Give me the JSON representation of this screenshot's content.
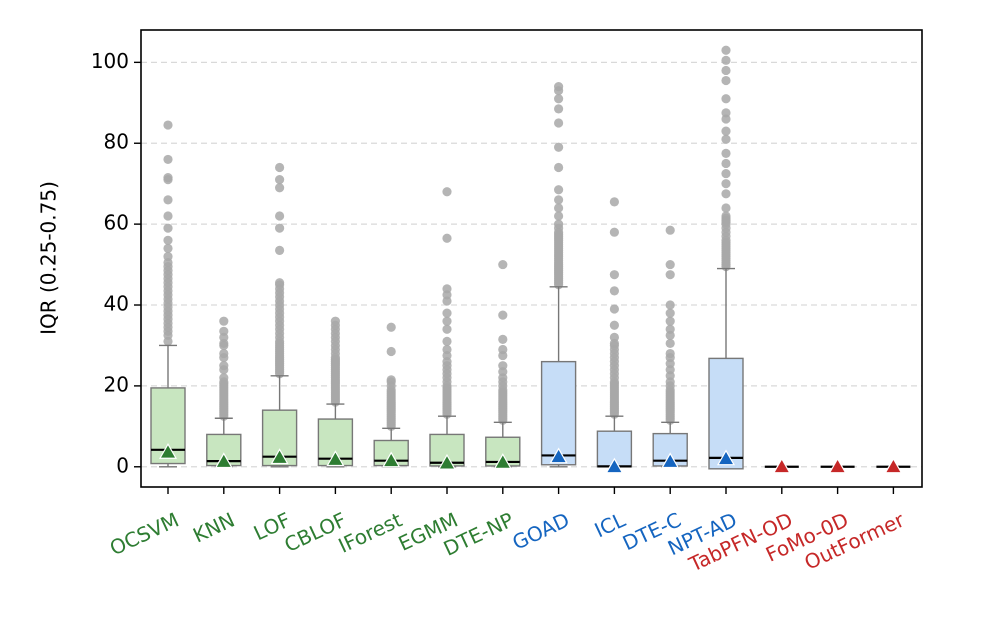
{
  "chart_data": {
    "type": "boxplot",
    "ylabel": "IQR (0.25-0.75)",
    "ylim": [
      -5,
      108
    ],
    "yticks": [
      0,
      20,
      40,
      60,
      80,
      100
    ],
    "grid": "horizontal-dashed",
    "colors": {
      "green": "#2e7d32",
      "blue": "#1565c0",
      "red": "#c62828",
      "green_fill": "#c8e6c0",
      "blue_fill": "#c6ddf7",
      "outlier": "#a8a8a8",
      "box_edge": "#777777"
    },
    "categories": [
      {
        "name": "OCSVM",
        "group": "green",
        "q1": 0.8,
        "median": 4.2,
        "q3": 19.5,
        "whislo": 0,
        "whishi": 30,
        "mean": 3.6,
        "outliers": [
          31,
          32.5,
          33.5,
          34.5,
          35.5,
          36.5,
          37.5,
          38.5,
          39.5,
          40.5,
          41.5,
          42.5,
          43.5,
          44.5,
          45.5,
          46.5,
          47.5,
          48.5,
          49.5,
          50.5,
          52,
          54,
          56,
          59,
          62,
          66,
          71,
          71.5,
          76,
          84.5
        ]
      },
      {
        "name": "KNN",
        "group": "green",
        "q1": 0.3,
        "median": 1.4,
        "q3": 8.0,
        "whislo": 0,
        "whishi": 12,
        "mean": 1.3,
        "outliers": [
          12.5,
          13,
          13.5,
          14,
          14.5,
          15,
          15.5,
          16,
          16.5,
          17,
          17.5,
          18,
          18.5,
          19,
          19.5,
          20,
          20.5,
          21,
          22,
          24,
          25,
          27,
          28,
          30,
          30.5,
          32,
          33.5,
          36
        ]
      },
      {
        "name": "LOF",
        "group": "green",
        "q1": 0.3,
        "median": 2.5,
        "q3": 14.0,
        "whislo": 0,
        "whishi": 22.5,
        "mean": 2.3,
        "outliers": [
          23,
          23.5,
          24,
          24.5,
          25,
          25.5,
          26,
          26.5,
          27,
          27.5,
          28,
          28.5,
          29,
          29.5,
          30,
          30.5,
          31,
          32,
          33,
          34,
          35,
          36,
          37,
          38,
          39,
          40,
          41,
          42,
          43,
          44,
          45,
          45.5,
          53.5,
          59,
          62,
          69,
          71,
          74
        ]
      },
      {
        "name": "CBLOF",
        "group": "green",
        "q1": 0.3,
        "median": 2.0,
        "q3": 11.8,
        "whislo": 0,
        "whishi": 15.5,
        "mean": 1.8,
        "outliers": [
          16,
          16.5,
          17,
          17.5,
          18,
          18.5,
          19,
          19.5,
          20,
          20.5,
          21,
          21.5,
          22,
          22.5,
          23,
          23.5,
          24,
          24.5,
          25,
          25.5,
          26,
          26.5,
          27,
          28,
          29,
          30,
          31,
          32,
          33,
          34,
          35,
          36
        ]
      },
      {
        "name": "IForest",
        "group": "green",
        "q1": 0.3,
        "median": 1.5,
        "q3": 6.5,
        "whislo": 0,
        "whishi": 9.5,
        "mean": 1.5,
        "outliers": [
          10,
          10.5,
          11,
          11.5,
          12,
          12.5,
          13,
          13.5,
          14,
          14.5,
          15,
          15.5,
          16,
          16.5,
          17,
          17.5,
          18,
          18.5,
          19,
          20,
          21,
          21.5,
          28.5,
          34.5
        ]
      },
      {
        "name": "EGMM",
        "group": "green",
        "q1": 0.2,
        "median": 1.0,
        "q3": 8.0,
        "whislo": 0,
        "whishi": 12.5,
        "mean": 0.9,
        "outliers": [
          13,
          13.5,
          14,
          14.5,
          15,
          15.5,
          16,
          16.5,
          17,
          17.5,
          18,
          18.5,
          19,
          19.5,
          20,
          21,
          22,
          23,
          24,
          25,
          26,
          27.5,
          29,
          31,
          34,
          36,
          38,
          41,
          42.5,
          44,
          56.5,
          68
        ]
      },
      {
        "name": "DTE-NP",
        "group": "green",
        "q1": 0.2,
        "median": 1.2,
        "q3": 7.3,
        "whislo": 0,
        "whishi": 11,
        "mean": 1.1,
        "outliers": [
          11.5,
          12,
          12.5,
          13,
          13.5,
          14,
          14.5,
          15,
          15.5,
          16,
          16.5,
          17,
          17.5,
          18,
          18.5,
          19,
          20,
          21,
          22,
          23.5,
          25,
          27.5,
          29,
          31.5,
          37.5,
          50
        ]
      },
      {
        "name": "GOAD",
        "group": "blue",
        "q1": 0.5,
        "median": 2.8,
        "q3": 26.0,
        "whislo": 0,
        "whishi": 44.5,
        "mean": 2.5,
        "outliers": [
          45,
          45.5,
          46,
          46.5,
          47,
          47.5,
          48,
          48.5,
          49,
          49.5,
          50,
          50.5,
          51,
          51.5,
          52,
          52.5,
          53,
          53.5,
          54,
          54.5,
          55,
          55.5,
          56,
          56.5,
          57,
          57.5,
          58,
          59,
          60,
          62,
          64,
          66,
          68.5,
          74,
          79,
          85,
          88.5,
          91,
          93,
          94
        ]
      },
      {
        "name": "ICL",
        "group": "blue",
        "q1": 0.0,
        "median": 0.1,
        "q3": 8.8,
        "whislo": 0,
        "whishi": 12.5,
        "mean": 0.0,
        "outliers": [
          13,
          13.5,
          14,
          14.5,
          15,
          15.5,
          16,
          16.5,
          17,
          17.5,
          18,
          18.5,
          19,
          19.5,
          20,
          20.5,
          21,
          22,
          23,
          24,
          25,
          26,
          27,
          28,
          29,
          30,
          30.5,
          32,
          35,
          39,
          43.5,
          47.5,
          58,
          65.5
        ]
      },
      {
        "name": "DTE-C",
        "group": "blue",
        "q1": 0.2,
        "median": 1.5,
        "q3": 8.2,
        "whislo": 0,
        "whishi": 11,
        "mean": 1.3,
        "outliers": [
          11.5,
          12,
          12.5,
          13,
          13.5,
          14,
          14.5,
          15,
          15.5,
          16,
          16.5,
          17,
          17.5,
          18,
          18.5,
          19,
          20,
          21,
          22.5,
          24,
          25.5,
          27,
          28,
          30.5,
          32.5,
          34,
          36,
          38,
          40,
          47.5,
          50,
          58.5
        ]
      },
      {
        "name": "NPT-AD",
        "group": "blue",
        "q1": -0.5,
        "median": 2.2,
        "q3": 26.8,
        "whislo": -0.5,
        "whishi": 49,
        "mean": 2.0,
        "outliers": [
          49.5,
          50,
          50.5,
          51,
          51.5,
          52,
          52.5,
          53,
          53.5,
          54,
          54.5,
          55,
          55.5,
          56,
          57,
          58,
          59,
          60,
          60.5,
          61,
          61.5,
          62,
          64,
          67.5,
          70,
          72.5,
          75,
          77.5,
          81,
          83,
          86,
          87.5,
          91,
          95.5,
          98,
          100.5,
          103
        ]
      },
      {
        "name": "TabPFN-OD",
        "group": "red",
        "q1": 0,
        "median": 0,
        "q3": 0,
        "whislo": 0,
        "whishi": 0,
        "mean": 0,
        "outliers": []
      },
      {
        "name": "FoMo-0D",
        "group": "red",
        "q1": 0,
        "median": 0,
        "q3": 0,
        "whislo": 0,
        "whishi": 0,
        "mean": 0,
        "outliers": []
      },
      {
        "name": "OutFormer",
        "group": "red",
        "q1": 0,
        "median": 0,
        "q3": 0,
        "whislo": 0,
        "whishi": 0,
        "mean": 0,
        "outliers": []
      }
    ]
  }
}
